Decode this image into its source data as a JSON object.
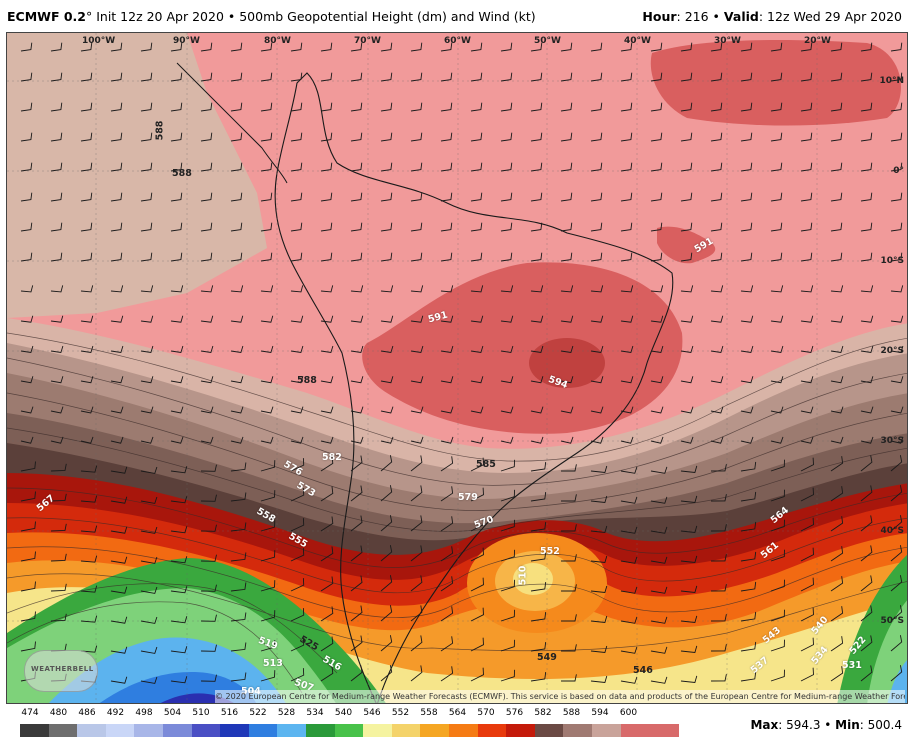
{
  "header": {
    "model": "ECMWF 0.2",
    "degree": "°",
    "init": " Init 12z 20 Apr 2020 • 500mb Geopotential Height (dm) and Wind (kt)",
    "hour_label": "Hour",
    "hour_value": ": 216 • ",
    "valid_label": "Valid",
    "valid_value": ": 12z Wed 29 Apr 2020"
  },
  "longitude_labels": [
    "100°W",
    "90°W",
    "80°W",
    "70°W",
    "60°W",
    "50°W",
    "40°W",
    "30°W",
    "20°W"
  ],
  "latitude_labels": [
    "10°N",
    "0°",
    "10°S",
    "20°S",
    "30°S",
    "40°S",
    "50°S"
  ],
  "contour_labels": [
    "588",
    "588",
    "591",
    "588",
    "594",
    "591",
    "588",
    "585",
    "582",
    "579",
    "576",
    "573",
    "570",
    "567",
    "564",
    "561",
    "558",
    "555",
    "552",
    "549",
    "546",
    "543",
    "540",
    "537",
    "534",
    "531",
    "528",
    "525",
    "522",
    "519",
    "516",
    "513",
    "510",
    "507",
    "504"
  ],
  "copyright": "© 2020 European Centre for Medium-range Weather Forecasts (ECMWF). This service is based on data and products of the European Centre for Medium-range Weather Forecasts (ECMWF).",
  "logo_text": "WEATHERBELL",
  "colorbar": {
    "values": [
      "474",
      "480",
      "486",
      "492",
      "498",
      "504",
      "510",
      "516",
      "522",
      "528",
      "534",
      "540",
      "546",
      "552",
      "558",
      "564",
      "570",
      "576",
      "582",
      "588",
      "594",
      "600"
    ],
    "colors": [
      "#3a3a3a",
      "#6e6e6e",
      "#b9c7e8",
      "#c9d6f7",
      "#a8b6e8",
      "#7b8ad9",
      "#4a4fc4",
      "#1f38b8",
      "#2f7ee0",
      "#5cb5f0",
      "#2a9a3a",
      "#48c24a",
      "#f5f3a0",
      "#f4d36a",
      "#f5a623",
      "#f57b14",
      "#e83a0c",
      "#c41a0a",
      "#6b4a44",
      "#a07a72",
      "#c9a39a",
      "#d86a6a"
    ]
  },
  "stats": {
    "max_label": "Max",
    "max_value": ": 594.3 • ",
    "min_label": "Min",
    "min_value": ": 500.4"
  },
  "colors": {
    "high_pink": "#f19a9a",
    "ridge_red": "#d95f5f",
    "core_red": "#c0413f",
    "tan": "#d8b7a8",
    "brown": "#8a6a62",
    "dark_brown": "#4d3632",
    "red_band": "#c41a0a",
    "orange": "#f5821e",
    "yellow": "#f6efa2",
    "green": "#36a83c",
    "blue": "#3c8ee0",
    "deep_blue": "#2a2fb0"
  }
}
